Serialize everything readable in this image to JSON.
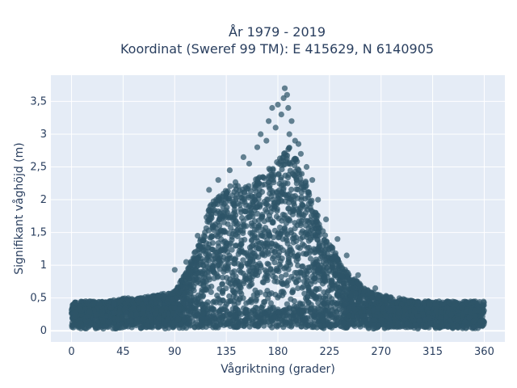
{
  "chart_data": {
    "type": "scatter",
    "title_line1": "År 1979 - 2019",
    "title_line2": "Koordinat (Sweref 99 TM): E 415629, N 6140905",
    "xlabel": "Vågriktning (grader)",
    "ylabel": "Signifikant våghöjd (m)",
    "xlim": [
      -18,
      378
    ],
    "ylim": [
      -0.17,
      3.9
    ],
    "xticks": [
      0,
      45,
      90,
      135,
      180,
      225,
      270,
      315,
      360
    ],
    "xtick_labels": [
      "0",
      "45",
      "90",
      "135",
      "180",
      "225",
      "270",
      "315",
      "360"
    ],
    "yticks": [
      0,
      0.5,
      1,
      1.5,
      2,
      2.5,
      3,
      3.5
    ],
    "ytick_labels": [
      "0",
      "0,5",
      "1",
      "1,5",
      "2",
      "2,5",
      "3",
      "3,5"
    ],
    "grid": true,
    "marker_color": "#2e5468",
    "plot_bgcolor": "#e5ecf6",
    "envelope": {
      "direction_deg": [
        0,
        15,
        30,
        45,
        60,
        75,
        90,
        100,
        110,
        120,
        130,
        140,
        150,
        160,
        170,
        180,
        190,
        200,
        210,
        220,
        230,
        240,
        250,
        260,
        270,
        285,
        300,
        315,
        330,
        345,
        360
      ],
      "max_height_m": [
        0.45,
        0.45,
        0.45,
        0.5,
        0.5,
        0.55,
        0.6,
        0.9,
        1.3,
        1.9,
        2.1,
        2.3,
        2.2,
        2.3,
        2.5,
        2.6,
        2.8,
        2.5,
        2.0,
        1.5,
        1.2,
        0.9,
        0.75,
        0.6,
        0.55,
        0.5,
        0.45,
        0.45,
        0.45,
        0.45,
        0.45
      ]
    },
    "peak_points": [
      {
        "x": 150,
        "y": 2.65
      },
      {
        "x": 155,
        "y": 2.55
      },
      {
        "x": 162,
        "y": 2.8
      },
      {
        "x": 165,
        "y": 3.0
      },
      {
        "x": 170,
        "y": 2.9
      },
      {
        "x": 172,
        "y": 3.2
      },
      {
        "x": 175,
        "y": 3.4
      },
      {
        "x": 178,
        "y": 3.1
      },
      {
        "x": 180,
        "y": 3.45
      },
      {
        "x": 183,
        "y": 3.3
      },
      {
        "x": 185,
        "y": 3.55
      },
      {
        "x": 186,
        "y": 3.7
      },
      {
        "x": 188,
        "y": 3.6
      },
      {
        "x": 189,
        "y": 3.4
      },
      {
        "x": 190,
        "y": 3.0
      },
      {
        "x": 192,
        "y": 3.2
      },
      {
        "x": 195,
        "y": 2.9
      },
      {
        "x": 198,
        "y": 2.85
      },
      {
        "x": 200,
        "y": 2.7
      },
      {
        "x": 205,
        "y": 2.5
      },
      {
        "x": 210,
        "y": 2.3
      },
      {
        "x": 215,
        "y": 2.0
      },
      {
        "x": 222,
        "y": 1.7
      },
      {
        "x": 232,
        "y": 1.4
      },
      {
        "x": 240,
        "y": 1.15
      },
      {
        "x": 250,
        "y": 0.85
      },
      {
        "x": 265,
        "y": 0.65
      },
      {
        "x": 120,
        "y": 2.15
      },
      {
        "x": 128,
        "y": 2.3
      },
      {
        "x": 138,
        "y": 2.45
      },
      {
        "x": 110,
        "y": 1.45
      },
      {
        "x": 100,
        "y": 1.05
      },
      {
        "x": 90,
        "y": 0.93
      }
    ]
  }
}
